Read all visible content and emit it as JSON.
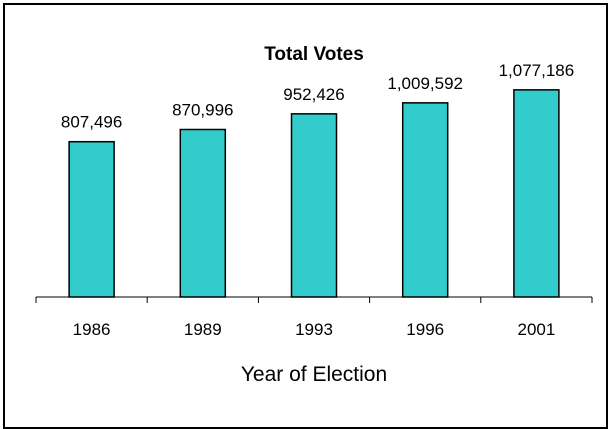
{
  "chart_data": {
    "type": "bar",
    "title": "Total Votes",
    "xlabel": "Year of Election",
    "ylabel": "",
    "categories": [
      "1986",
      "1989",
      "1993",
      "1996",
      "2001"
    ],
    "values": [
      807496,
      870996,
      952426,
      1009592,
      1077186
    ],
    "value_labels": [
      "807,496",
      "870,996",
      "952,426",
      "1,009,592",
      "1,077,186"
    ],
    "ylim": [
      0,
      1300000
    ],
    "bar_color": "#33CCCC",
    "bar_outline": "#000000",
    "grid": false,
    "legend": "none"
  }
}
